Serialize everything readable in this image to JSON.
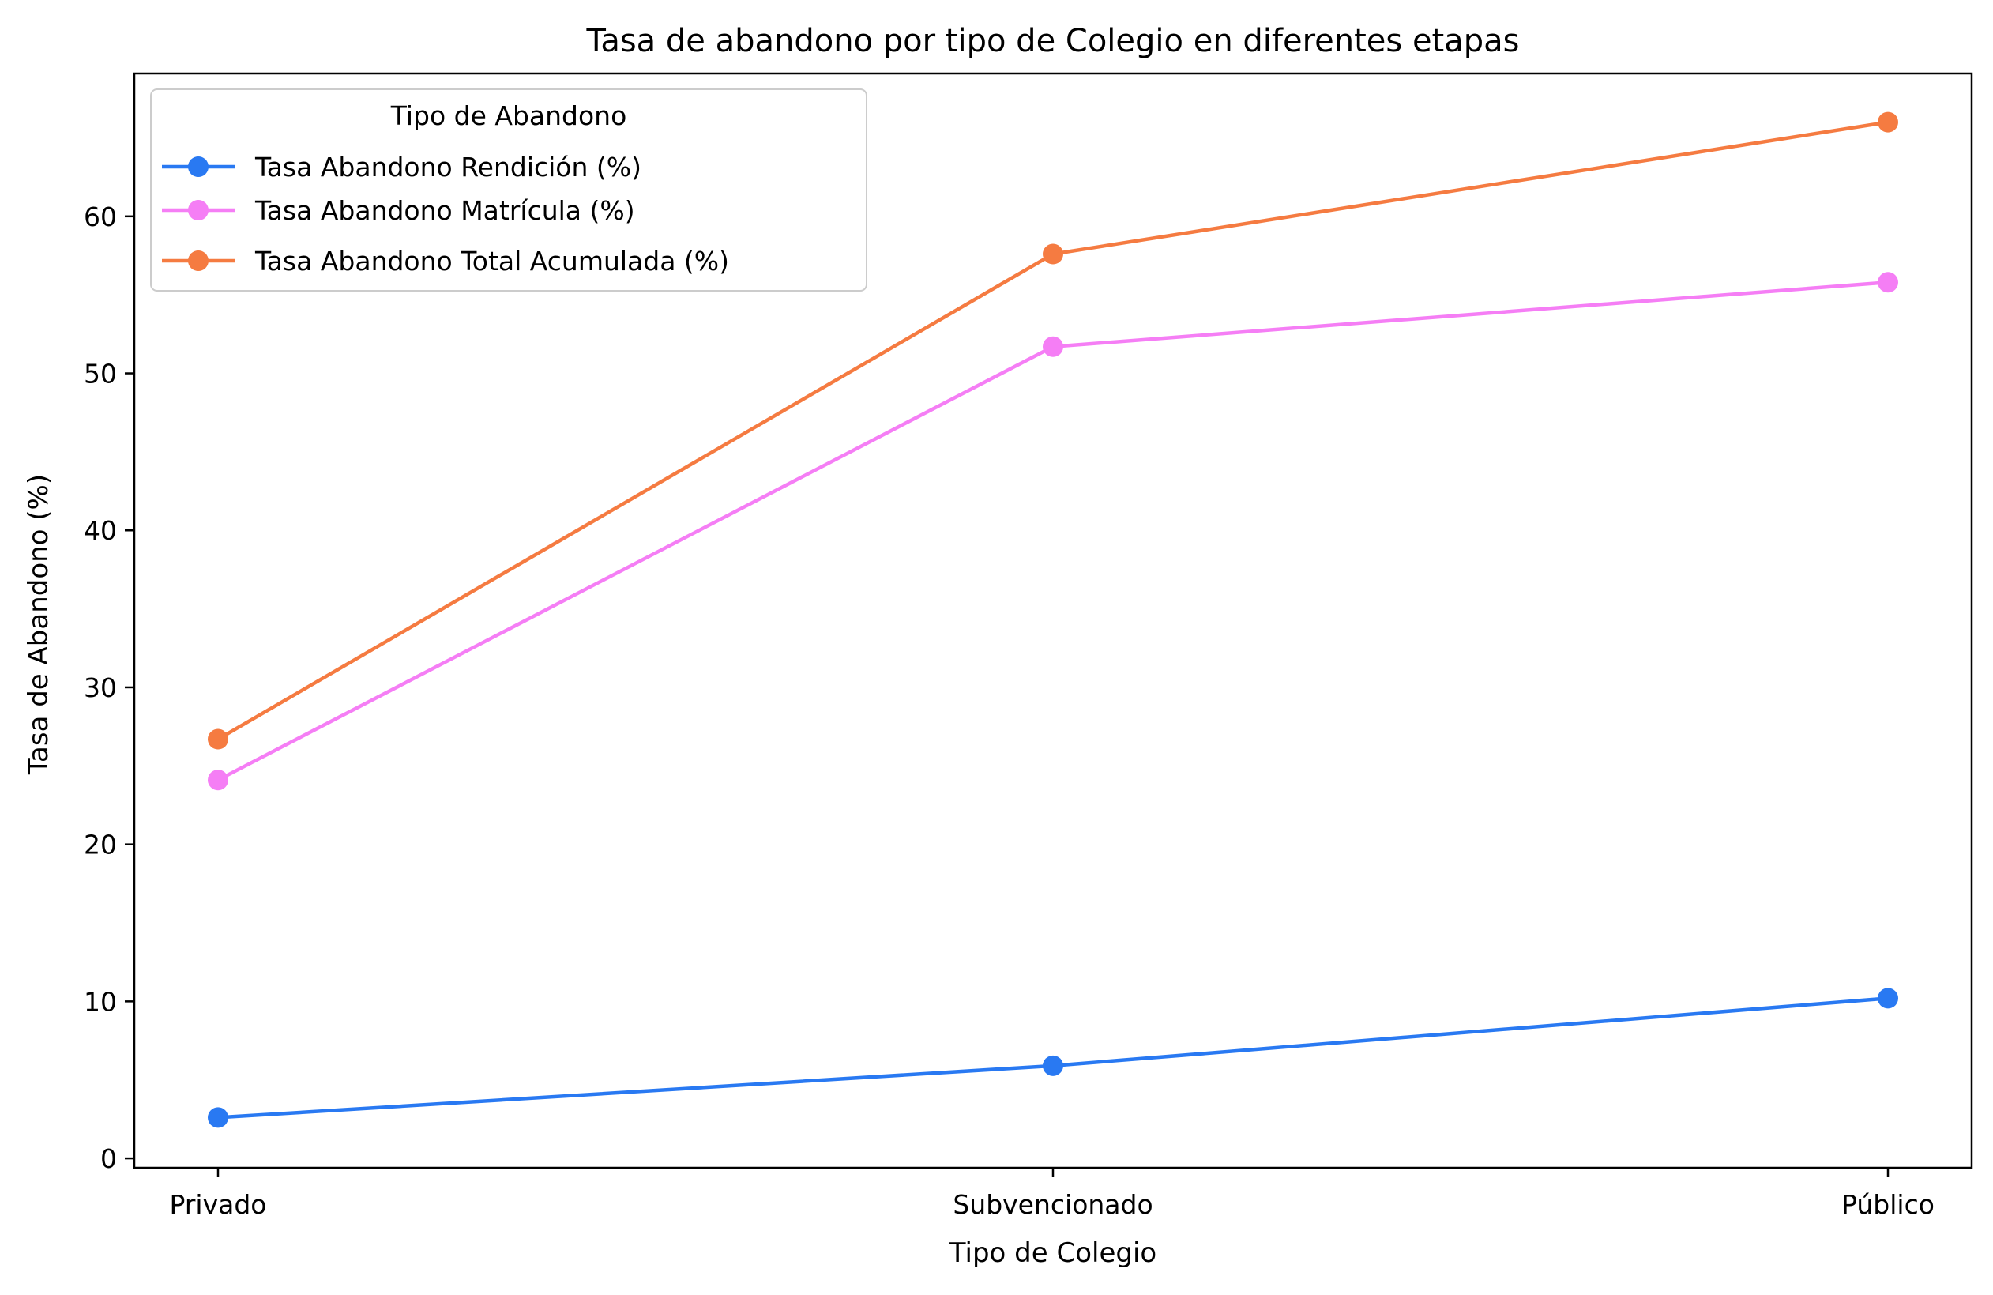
{
  "chart_data": {
    "type": "line",
    "title": "Tasa de abandono por tipo de Colegio en diferentes etapas",
    "xlabel": "Tipo de Colegio",
    "ylabel": "Tasa de Abandono (%)",
    "categories": [
      "Privado",
      "Subvencionado",
      "Público"
    ],
    "ylim": [
      -0.6,
      69.1
    ],
    "yticks": [
      0,
      10,
      20,
      30,
      40,
      50,
      60
    ],
    "grid": false,
    "legend": {
      "title": "Tipo de Abandono",
      "placement": "top-left"
    },
    "series": [
      {
        "name": "Tasa Abandono Rendición (%)",
        "color": "#2979f2",
        "values": [
          2.6,
          5.9,
          10.2
        ]
      },
      {
        "name": "Tasa Abandono Matrícula (%)",
        "color": "#f57ef5",
        "values": [
          24.1,
          51.7,
          55.8
        ]
      },
      {
        "name": "Tasa Abandono Total Acumulada (%)",
        "color": "#f57b41",
        "values": [
          26.7,
          57.6,
          66.0
        ]
      }
    ]
  }
}
